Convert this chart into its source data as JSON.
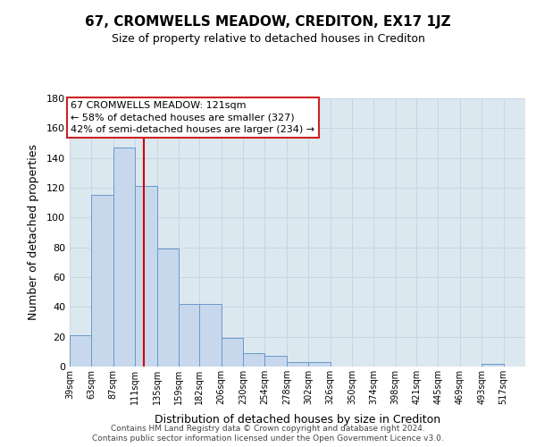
{
  "title": "67, CROMWELLS MEADOW, CREDITON, EX17 1JZ",
  "subtitle": "Size of property relative to detached houses in Crediton",
  "xlabel": "Distribution of detached houses by size in Crediton",
  "ylabel": "Number of detached properties",
  "footer_line1": "Contains HM Land Registry data © Crown copyright and database right 2024.",
  "footer_line2": "Contains public sector information licensed under the Open Government Licence v3.0.",
  "bar_edges": [
    39,
    63,
    87,
    111,
    135,
    159,
    182,
    206,
    230,
    254,
    278,
    302,
    326,
    350,
    374,
    398,
    421,
    445,
    469,
    493,
    517
  ],
  "bar_heights": [
    21,
    115,
    147,
    121,
    79,
    42,
    42,
    19,
    9,
    7,
    3,
    3,
    0,
    0,
    0,
    0,
    0,
    0,
    0,
    2
  ],
  "bar_color": "#c8d8ec",
  "bar_edge_color": "#6699cc",
  "red_line_x": 121,
  "ylim": [
    0,
    180
  ],
  "yticks": [
    0,
    20,
    40,
    60,
    80,
    100,
    120,
    140,
    160,
    180
  ],
  "tick_labels": [
    "39sqm",
    "63sqm",
    "87sqm",
    "111sqm",
    "135sqm",
    "159sqm",
    "182sqm",
    "206sqm",
    "230sqm",
    "254sqm",
    "278sqm",
    "302sqm",
    "326sqm",
    "350sqm",
    "374sqm",
    "398sqm",
    "421sqm",
    "445sqm",
    "469sqm",
    "493sqm",
    "517sqm"
  ],
  "annotation_title": "67 CROMWELLS MEADOW: 121sqm",
  "annotation_line1": "← 58% of detached houses are smaller (327)",
  "annotation_line2": "42% of semi-detached houses are larger (234) →",
  "grid_color": "#c8d4e0",
  "background_color": "#dce8f0",
  "fig_bg_color": "#ffffff"
}
